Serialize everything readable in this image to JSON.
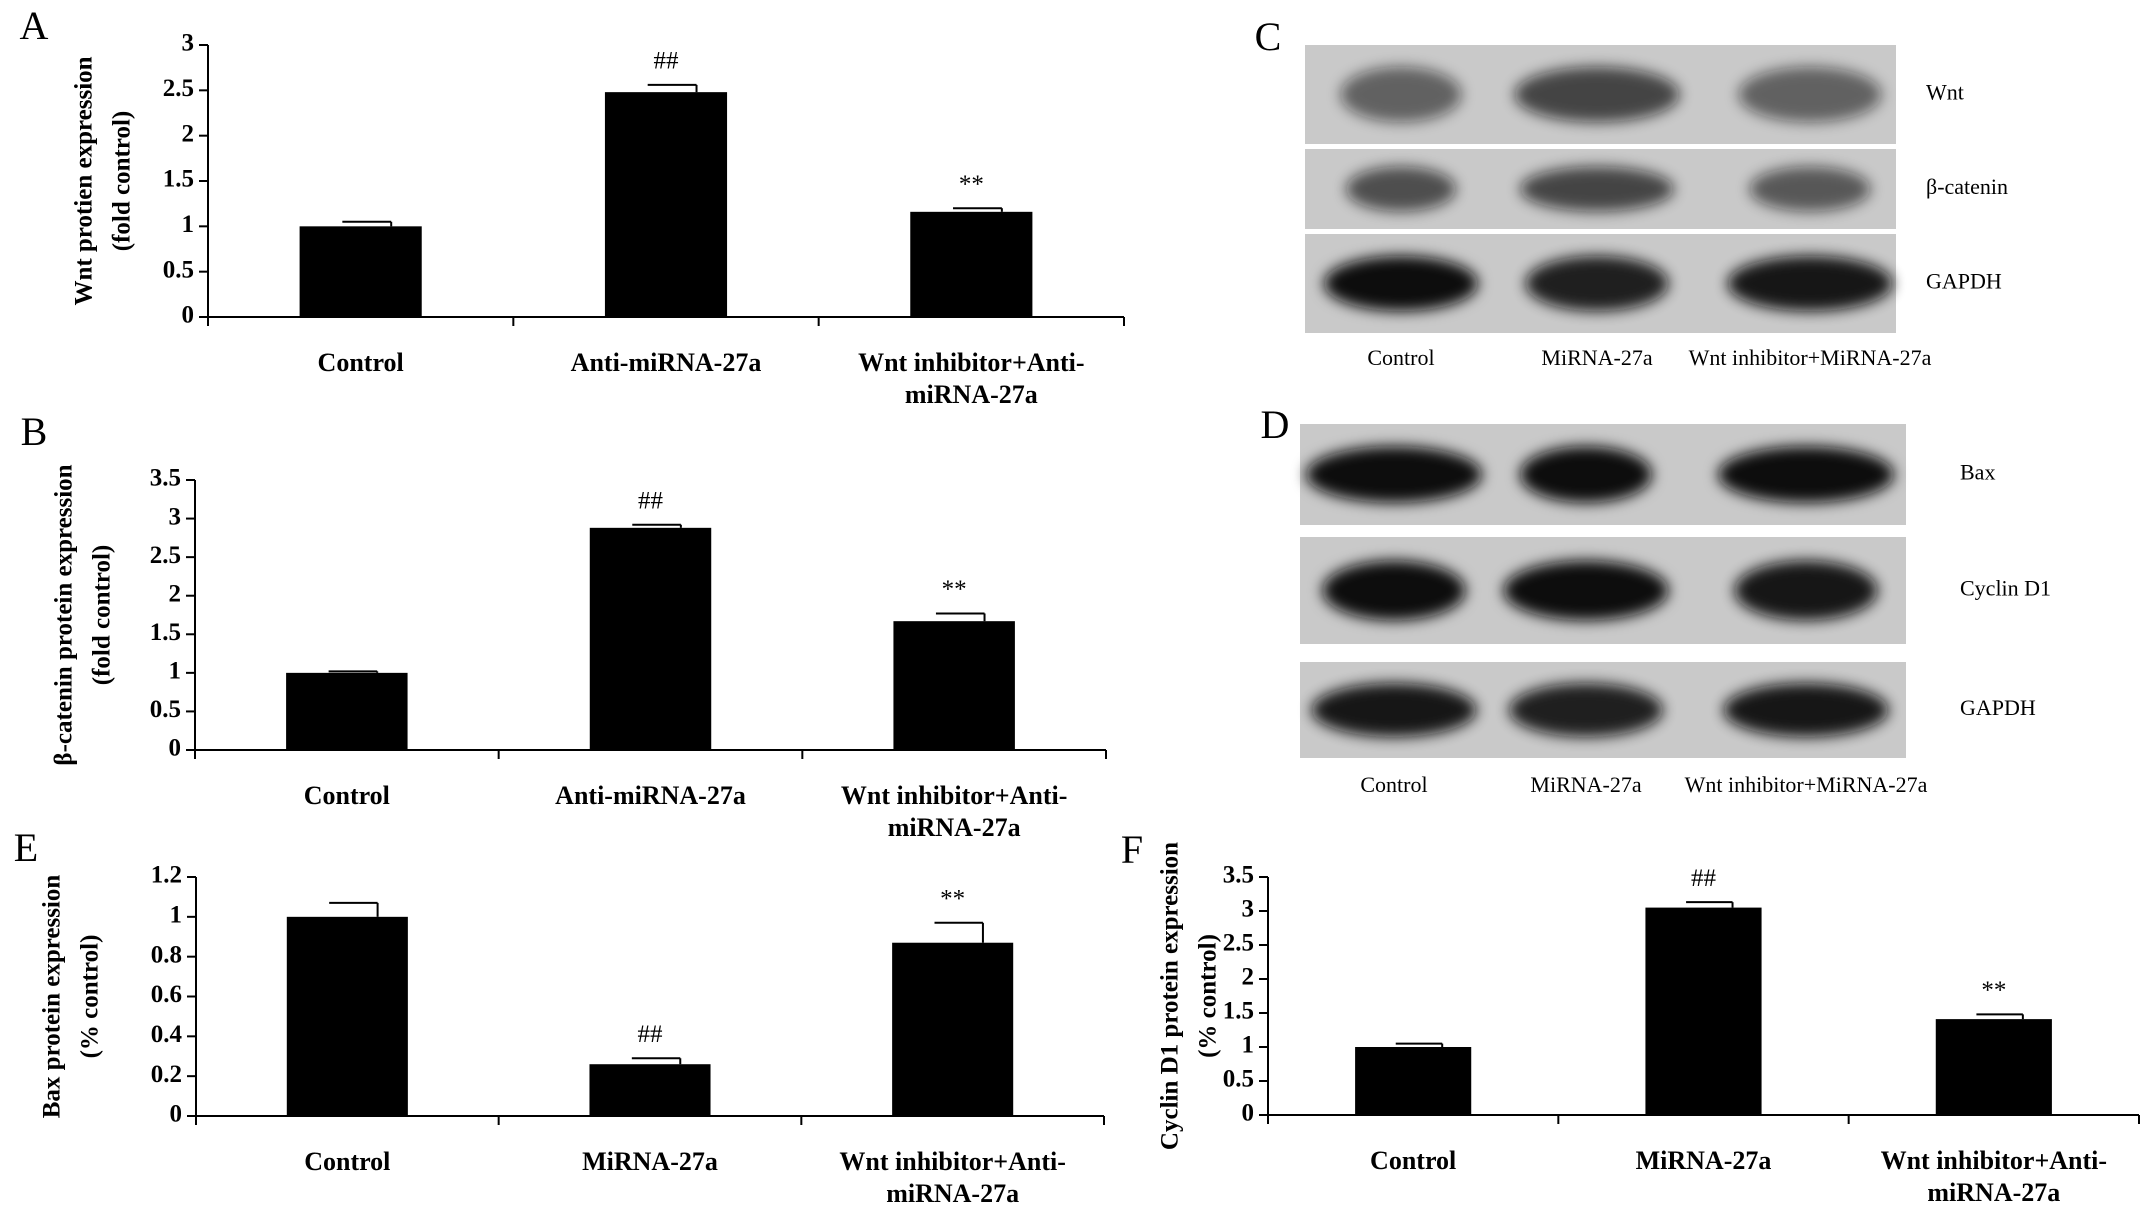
{
  "chart_data": [
    {
      "type": "bar",
      "panel": "A",
      "ylabel": [
        "Wnt protien expression",
        "(fold control)"
      ],
      "categories": [
        "Control",
        "Anti-miRNA-27a",
        "Wnt inhibitor+Anti-miRNA-27a"
      ],
      "values": [
        1.0,
        2.48,
        1.16
      ],
      "errors": [
        0.05,
        0.08,
        0.04
      ],
      "color": "#000000",
      "annotations": [
        {
          "category": 1,
          "text": "##"
        },
        {
          "category": 2,
          "text": "**"
        }
      ],
      "ylim": [
        0,
        3
      ],
      "yticks": [
        0,
        0.5,
        1,
        1.5,
        2,
        2.5,
        3
      ]
    },
    {
      "type": "bar",
      "panel": "B",
      "ylabel": [
        "β-catenin protein expression",
        "(fold control)"
      ],
      "categories": [
        "Control",
        "Anti-miRNA-27a",
        "Wnt inhibitor+Anti-miRNA-27a"
      ],
      "values": [
        1.0,
        2.88,
        1.67
      ],
      "errors": [
        0.02,
        0.04,
        0.1
      ],
      "color": "#000000",
      "annotations": [
        {
          "category": 1,
          "text": "##"
        },
        {
          "category": 2,
          "text": "**"
        }
      ],
      "ylim": [
        0,
        3.5
      ],
      "yticks": [
        0,
        0.5,
        1,
        1.5,
        2,
        2.5,
        3,
        3.5
      ]
    },
    {
      "type": "bar",
      "panel": "E",
      "ylabel": [
        "Bax protein expression",
        "(% control)"
      ],
      "categories": [
        "Control",
        "MiRNA-27a",
        "Wnt inhibitor+Anti-miRNA-27a"
      ],
      "values": [
        1.0,
        0.26,
        0.87
      ],
      "errors": [
        0.07,
        0.03,
        0.1
      ],
      "color": "#000000",
      "annotations": [
        {
          "category": 1,
          "text": "##"
        },
        {
          "category": 2,
          "text": "**"
        }
      ],
      "ylim": [
        0,
        1.2
      ],
      "yticks": [
        0,
        0.2,
        0.4,
        0.6,
        0.8,
        1,
        1.2
      ]
    },
    {
      "type": "bar",
      "panel": "F",
      "ylabel": [
        "Cyclin D1 protein expression",
        "(% control)"
      ],
      "categories": [
        "Control",
        "MiRNA-27a",
        "Wnt inhibitor+Anti-miRNA-27a"
      ],
      "values": [
        1.0,
        3.05,
        1.41
      ],
      "errors": [
        0.05,
        0.08,
        0.07
      ],
      "color": "#000000",
      "annotations": [
        {
          "category": 1,
          "text": "##"
        },
        {
          "category": 2,
          "text": "**"
        }
      ],
      "ylim": [
        0,
        3.5
      ],
      "yticks": [
        0,
        0.5,
        1,
        1.5,
        2,
        2.5,
        3,
        3.5
      ]
    }
  ],
  "blots": [
    {
      "panel": "C",
      "rows": [
        "Wnt",
        "β-catenin",
        "GAPDH"
      ],
      "lanes": [
        "Control",
        "MiRNA-27a",
        "Wnt inhibitor+MiRNA-27a"
      ]
    },
    {
      "panel": "D",
      "rows": [
        "Bax",
        "Cyclin D1",
        "GAPDH"
      ],
      "lanes": [
        "Control",
        "MiRNA-27a",
        "Wnt inhibitor+MiRNA-27a"
      ]
    }
  ]
}
